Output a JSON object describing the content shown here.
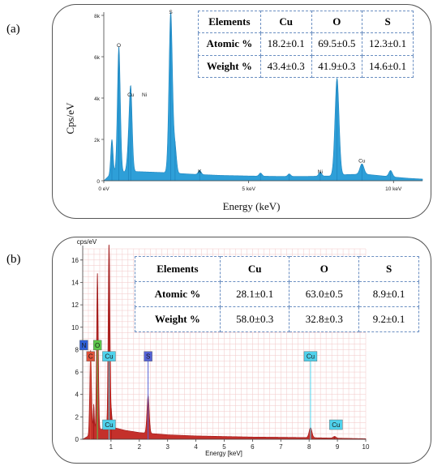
{
  "panel_labels": {
    "a": "(a)",
    "b": "(b)"
  },
  "colors": {
    "spectrum_a": "#2e9fd8",
    "spectrum_b": "#a01818",
    "tag_o": "#5cc84a",
    "tag_cu": "#4fd2ec",
    "tag_s": "#5563d6",
    "tag_c": "#e0523a",
    "tag_n": "#2f60d8"
  },
  "chart_data": [
    {
      "type": "area",
      "title": "",
      "xlabel": "Energy (keV)",
      "ylabel": "Cps/eV",
      "xlim": [
        0,
        11
      ],
      "ylim": [
        0,
        8000
      ],
      "yticks": [
        {
          "v": 0,
          "t": "0"
        },
        {
          "v": 2000,
          "t": "2k"
        },
        {
          "v": 4000,
          "t": "4k"
        },
        {
          "v": 6000,
          "t": "6k"
        },
        {
          "v": 8000,
          "t": "8k"
        }
      ],
      "xticks": [
        {
          "v": 0,
          "t": "0 eV"
        },
        {
          "v": 5,
          "t": "5 keV"
        },
        {
          "v": 10,
          "t": "10 keV"
        }
      ],
      "baseline": [
        [
          0,
          0
        ],
        [
          0.15,
          200
        ],
        [
          0.4,
          380
        ],
        [
          1.0,
          450
        ],
        [
          2.0,
          400
        ],
        [
          3.0,
          320
        ],
        [
          4.0,
          260
        ],
        [
          5.0,
          230
        ],
        [
          6.0,
          210
        ],
        [
          7.0,
          210
        ],
        [
          7.8,
          230
        ],
        [
          8.4,
          300
        ],
        [
          9.0,
          320
        ],
        [
          9.5,
          250
        ],
        [
          10.0,
          180
        ],
        [
          10.5,
          120
        ],
        [
          11.0,
          80
        ]
      ],
      "peaks": [
        {
          "x": 0.28,
          "y": 1700,
          "w": 0.04
        },
        {
          "x": 0.52,
          "y": 6100,
          "w": 0.05
        },
        {
          "x": 0.93,
          "y": 3900,
          "w": 0.05
        },
        {
          "x": 0.85,
          "y": 900,
          "w": 0.05
        },
        {
          "x": 2.31,
          "y": 7800,
          "w": 0.06
        },
        {
          "x": 2.46,
          "y": 1200,
          "w": 0.05
        },
        {
          "x": 3.31,
          "y": 200,
          "w": 0.05
        },
        {
          "x": 5.41,
          "y": 150,
          "w": 0.05
        },
        {
          "x": 6.4,
          "y": 120,
          "w": 0.05
        },
        {
          "x": 7.47,
          "y": 200,
          "w": 0.05
        },
        {
          "x": 8.05,
          "y": 4700,
          "w": 0.07
        },
        {
          "x": 8.91,
          "y": 500,
          "w": 0.07
        },
        {
          "x": 9.9,
          "y": 300,
          "w": 0.06
        }
      ],
      "peak_labels": [
        {
          "text": "O",
          "x": 0.52,
          "y": 6400
        },
        {
          "text": "Cu",
          "x": 0.93,
          "y": 4000
        },
        {
          "text": "Ni",
          "x": 1.4,
          "y": 4000
        },
        {
          "text": "S",
          "x": 2.31,
          "y": 8000
        },
        {
          "text": "K",
          "x": 3.31,
          "y": 300
        },
        {
          "text": "Ni",
          "x": 7.47,
          "y": 280
        },
        {
          "text": "Cu",
          "x": 8.91,
          "y": 800
        }
      ],
      "table": {
        "headers": [
          "Elements",
          "Cu",
          "O",
          "S"
        ],
        "rows": [
          {
            "label": "Atomic %",
            "values": [
              "18.2±0.1",
              "69.5±0.5",
              "12.3±0.1"
            ]
          },
          {
            "label": "Weight %",
            "values": [
              "43.4±0.3",
              "41.9±0.3",
              "14.6±0.1"
            ]
          }
        ]
      }
    },
    {
      "type": "area",
      "title": "",
      "xlabel": "Energy [keV]",
      "ylabel": "cps/eV",
      "xlim": [
        0,
        10
      ],
      "ylim": [
        0,
        17
      ],
      "yticks": [
        {
          "v": 0,
          "t": "0"
        },
        {
          "v": 2,
          "t": "2"
        },
        {
          "v": 4,
          "t": "4"
        },
        {
          "v": 6,
          "t": "6"
        },
        {
          "v": 8,
          "t": "8"
        },
        {
          "v": 10,
          "t": "10"
        },
        {
          "v": 12,
          "t": "12"
        },
        {
          "v": 14,
          "t": "14"
        },
        {
          "v": 16,
          "t": "16"
        }
      ],
      "xticks": [
        {
          "v": 1,
          "t": "1"
        },
        {
          "v": 2,
          "t": "2"
        },
        {
          "v": 3,
          "t": "3"
        },
        {
          "v": 4,
          "t": "4"
        },
        {
          "v": 5,
          "t": "5"
        },
        {
          "v": 6,
          "t": "6"
        },
        {
          "v": 7,
          "t": "7"
        },
        {
          "v": 8,
          "t": "8"
        },
        {
          "v": 9,
          "t": "9"
        },
        {
          "v": 10,
          "t": "10"
        }
      ],
      "grid": true,
      "baseline": [
        [
          0,
          0
        ],
        [
          0.2,
          0.3
        ],
        [
          0.5,
          0.8
        ],
        [
          1.0,
          1.1
        ],
        [
          1.5,
          0.8
        ],
        [
          2.0,
          0.6
        ],
        [
          3.0,
          0.4
        ],
        [
          4.0,
          0.3
        ],
        [
          5.0,
          0.25
        ],
        [
          6.0,
          0.2
        ],
        [
          7.0,
          0.18
        ],
        [
          8.0,
          0.15
        ],
        [
          9.0,
          0.1
        ],
        [
          10.0,
          0.05
        ]
      ],
      "peaks": [
        {
          "x": 0.28,
          "y": 7.5,
          "w": 0.03
        },
        {
          "x": 0.39,
          "y": 2.5,
          "w": 0.02
        },
        {
          "x": 0.52,
          "y": 14.0,
          "w": 0.03
        },
        {
          "x": 0.93,
          "y": 16.8,
          "w": 0.03
        },
        {
          "x": 1.01,
          "y": 1.2,
          "w": 0.03
        },
        {
          "x": 2.31,
          "y": 3.4,
          "w": 0.04
        },
        {
          "x": 8.05,
          "y": 0.9,
          "w": 0.05
        },
        {
          "x": 8.9,
          "y": 0.15,
          "w": 0.05
        }
      ],
      "element_tags": [
        {
          "text": "N",
          "x": 0.04,
          "line": false,
          "y": 8.4,
          "color": "#2f60d8"
        },
        {
          "text": "O",
          "x": 0.52,
          "line": true,
          "y": 8.4,
          "color": "#5cc84a"
        },
        {
          "text": "C",
          "x": 0.28,
          "line": true,
          "y": 7.4,
          "color": "#e0523a"
        },
        {
          "text": "Cu",
          "x": 0.93,
          "line": true,
          "y": 7.4,
          "color": "#4fd2ec"
        },
        {
          "text": "S",
          "x": 2.31,
          "line": true,
          "y": 7.4,
          "color": "#5563d6"
        },
        {
          "text": "Cu",
          "x": 8.05,
          "line": true,
          "y": 7.4,
          "color": "#4fd2ec"
        },
        {
          "text": "Cu",
          "x": 0.93,
          "line": false,
          "y": 1.3,
          "color": "#4fd2ec"
        },
        {
          "text": "Cu",
          "x": 8.95,
          "line": false,
          "y": 1.3,
          "color": "#4fd2ec"
        }
      ],
      "table": {
        "headers": [
          "Elements",
          "Cu",
          "O",
          "S"
        ],
        "rows": [
          {
            "label": "Atomic %",
            "values": [
              "28.1±0.1",
              "63.0±0.5",
              "8.9±0.1"
            ]
          },
          {
            "label": "Weight %",
            "values": [
              "58.0±0.3",
              "32.8±0.3",
              "9.2±0.1"
            ]
          }
        ]
      }
    }
  ]
}
